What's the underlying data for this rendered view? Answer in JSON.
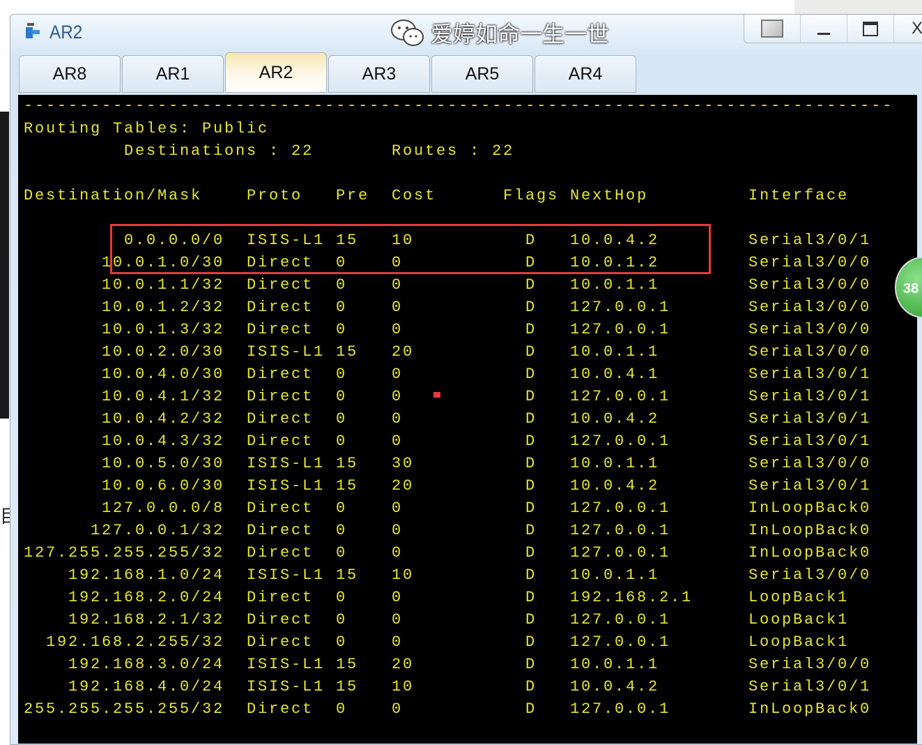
{
  "window": {
    "title": "AR2",
    "controls": [
      "restore-down",
      "minimize",
      "maximize",
      "close"
    ],
    "close_label": "X"
  },
  "tabs": [
    {
      "label": "AR8"
    },
    {
      "label": "AR1"
    },
    {
      "label": "AR2",
      "active": true
    },
    {
      "label": "AR3"
    },
    {
      "label": "AR5"
    },
    {
      "label": "AR4"
    }
  ],
  "terminal": {
    "divider": "------------------------------------------------------------------------------",
    "heading": "Routing Tables: Public",
    "destinations_label": "Destinations : 22",
    "routes_label": "Routes : 22",
    "columns": [
      "Destination/Mask",
      "Proto",
      "Pre",
      "Cost",
      "Flags",
      "NextHop",
      "Interface"
    ],
    "rows": [
      [
        "0.0.0.0/0",
        "ISIS-L1",
        "15",
        "10",
        "D",
        "10.0.4.2",
        "Serial3/0/1"
      ],
      [
        "10.0.1.0/30",
        "Direct",
        "0",
        "0",
        "D",
        "10.0.1.2",
        "Serial3/0/0"
      ],
      [
        "10.0.1.1/32",
        "Direct",
        "0",
        "0",
        "D",
        "10.0.1.1",
        "Serial3/0/0"
      ],
      [
        "10.0.1.2/32",
        "Direct",
        "0",
        "0",
        "D",
        "127.0.0.1",
        "Serial3/0/0"
      ],
      [
        "10.0.1.3/32",
        "Direct",
        "0",
        "0",
        "D",
        "127.0.0.1",
        "Serial3/0/0"
      ],
      [
        "10.0.2.0/30",
        "ISIS-L1",
        "15",
        "20",
        "D",
        "10.0.1.1",
        "Serial3/0/0"
      ],
      [
        "10.0.4.0/30",
        "Direct",
        "0",
        "0",
        "D",
        "10.0.4.1",
        "Serial3/0/1"
      ],
      [
        "10.0.4.1/32",
        "Direct",
        "0",
        "0",
        "D",
        "127.0.0.1",
        "Serial3/0/1"
      ],
      [
        "10.0.4.2/32",
        "Direct",
        "0",
        "0",
        "D",
        "10.0.4.2",
        "Serial3/0/1"
      ],
      [
        "10.0.4.3/32",
        "Direct",
        "0",
        "0",
        "D",
        "127.0.0.1",
        "Serial3/0/1"
      ],
      [
        "10.0.5.0/30",
        "ISIS-L1",
        "15",
        "30",
        "D",
        "10.0.1.1",
        "Serial3/0/0"
      ],
      [
        "10.0.6.0/30",
        "ISIS-L1",
        "15",
        "20",
        "D",
        "10.0.4.2",
        "Serial3/0/1"
      ],
      [
        "127.0.0.0/8",
        "Direct",
        "0",
        "0",
        "D",
        "127.0.0.1",
        "InLoopBack0"
      ],
      [
        "127.0.0.1/32",
        "Direct",
        "0",
        "0",
        "D",
        "127.0.0.1",
        "InLoopBack0"
      ],
      [
        "127.255.255.255/32",
        "Direct",
        "0",
        "0",
        "D",
        "127.0.0.1",
        "InLoopBack0"
      ],
      [
        "192.168.1.0/24",
        "ISIS-L1",
        "15",
        "10",
        "D",
        "10.0.1.1",
        "Serial3/0/0"
      ],
      [
        "192.168.2.0/24",
        "Direct",
        "0",
        "0",
        "D",
        "192.168.2.1",
        "LoopBack1"
      ],
      [
        "192.168.2.1/32",
        "Direct",
        "0",
        "0",
        "D",
        "127.0.0.1",
        "LoopBack1"
      ],
      [
        "192.168.2.255/32",
        "Direct",
        "0",
        "0",
        "D",
        "127.0.0.1",
        "LoopBack1"
      ],
      [
        "192.168.3.0/24",
        "ISIS-L1",
        "15",
        "20",
        "D",
        "10.0.1.1",
        "Serial3/0/0"
      ],
      [
        "192.168.4.0/24",
        "ISIS-L1",
        "15",
        "10",
        "D",
        "10.0.4.2",
        "Serial3/0/1"
      ],
      [
        "255.255.255.255/32",
        "Direct",
        "0",
        "0",
        "D",
        "127.0.0.1",
        "InLoopBack0"
      ]
    ],
    "highlight_color": "#e8393a",
    "text_color": "#e6e62e"
  },
  "badge": {
    "text": "38"
  },
  "side_char": "目",
  "watermark": {
    "text": "爱婷如命一生一世"
  }
}
